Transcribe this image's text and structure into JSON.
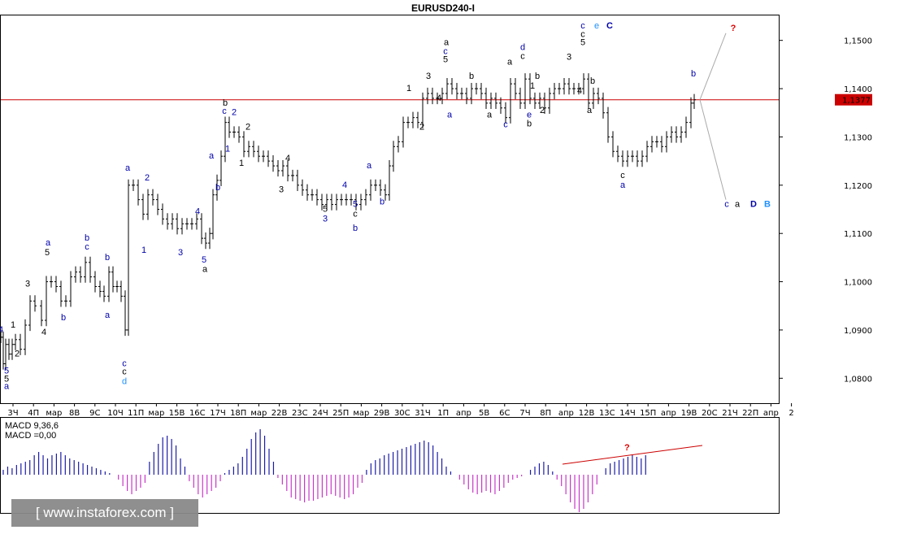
{
  "chart_data": {
    "type": "line",
    "title": "EURUSD240-I",
    "current_price": "1,1377",
    "price_level": 1.1377,
    "ylim": [
      1.075,
      1.155
    ],
    "y_ticks": [
      "1,1500",
      "1,1400",
      "1,1300",
      "1,1200",
      "1,1100",
      "1,1000",
      "1,0900",
      "1,0800"
    ],
    "y_tick_values": [
      1.15,
      1.14,
      1.13,
      1.12,
      1.11,
      1.1,
      1.09,
      1.08
    ],
    "x_ticks": [
      "3Ч",
      "4П",
      "мар",
      "8В",
      "9С",
      "10Ч",
      "11П",
      "мар",
      "15В",
      "16С",
      "17Ч",
      "18П",
      "мар",
      "22В",
      "23С",
      "24Ч",
      "25П",
      "мар",
      "29В",
      "30С",
      "31Ч",
      "1П",
      "апр",
      "5В",
      "6С",
      "7Ч",
      "8П",
      "апр",
      "12В",
      "13С",
      "14Ч",
      "15П",
      "апр",
      "19В",
      "20С",
      "21Ч",
      "22П",
      "апр",
      "2"
    ],
    "price_path": [
      [
        0,
        1.0885
      ],
      [
        3,
        1.083
      ],
      [
        6,
        1.087
      ],
      [
        10,
        1.085
      ],
      [
        14,
        1.087
      ],
      [
        18,
        1.088
      ],
      [
        24,
        1.086
      ],
      [
        30,
        1.091
      ],
      [
        36,
        1.096
      ],
      [
        42,
        1.095
      ],
      [
        50,
        1.092
      ],
      [
        56,
        1.1
      ],
      [
        62,
        1.1
      ],
      [
        68,
        1.099
      ],
      [
        74,
        1.096
      ],
      [
        80,
        1.096
      ],
      [
        86,
        1.101
      ],
      [
        92,
        1.102
      ],
      [
        98,
        1.101
      ],
      [
        104,
        1.104
      ],
      [
        110,
        1.101
      ],
      [
        116,
        1.099
      ],
      [
        122,
        1.098
      ],
      [
        127,
        1.097
      ],
      [
        133,
        1.102
      ],
      [
        138,
        1.099
      ],
      [
        143,
        1.099
      ],
      [
        148,
        1.097
      ],
      [
        153,
        1.09
      ],
      [
        157,
        1.12
      ],
      [
        163,
        1.12
      ],
      [
        169,
        1.117
      ],
      [
        175,
        1.114
      ],
      [
        181,
        1.118
      ],
      [
        187,
        1.117
      ],
      [
        193,
        1.115
      ],
      [
        199,
        1.113
      ],
      [
        205,
        1.112
      ],
      [
        211,
        1.113
      ],
      [
        217,
        1.111
      ],
      [
        223,
        1.112
      ],
      [
        229,
        1.112
      ],
      [
        235,
        1.112
      ],
      [
        241,
        1.113
      ],
      [
        247,
        1.109
      ],
      [
        252,
        1.108
      ],
      [
        257,
        1.11
      ],
      [
        261,
        1.118
      ],
      [
        266,
        1.121
      ],
      [
        271,
        1.126
      ],
      [
        276,
        1.133
      ],
      [
        281,
        1.131
      ],
      [
        287,
        1.131
      ],
      [
        293,
        1.13
      ],
      [
        299,
        1.127
      ],
      [
        305,
        1.128
      ],
      [
        311,
        1.127
      ],
      [
        317,
        1.126
      ],
      [
        323,
        1.126
      ],
      [
        329,
        1.125
      ],
      [
        335,
        1.124
      ],
      [
        341,
        1.123
      ],
      [
        347,
        1.124
      ],
      [
        353,
        1.122
      ],
      [
        359,
        1.122
      ],
      [
        365,
        1.12
      ],
      [
        371,
        1.119
      ],
      [
        377,
        1.118
      ],
      [
        383,
        1.118
      ],
      [
        389,
        1.117
      ],
      [
        395,
        1.116
      ],
      [
        401,
        1.117
      ],
      [
        407,
        1.116
      ],
      [
        413,
        1.117
      ],
      [
        419,
        1.117
      ],
      [
        425,
        1.117
      ],
      [
        431,
        1.117
      ],
      [
        437,
        1.116
      ],
      [
        443,
        1.117
      ],
      [
        449,
        1.118
      ],
      [
        455,
        1.12
      ],
      [
        461,
        1.12
      ],
      [
        467,
        1.119
      ],
      [
        473,
        1.118
      ],
      [
        478,
        1.124
      ],
      [
        483,
        1.128
      ],
      [
        489,
        1.129
      ],
      [
        495,
        1.133
      ],
      [
        501,
        1.133
      ],
      [
        507,
        1.134
      ],
      [
        513,
        1.133
      ],
      [
        519,
        1.138
      ],
      [
        525,
        1.139
      ],
      [
        531,
        1.138
      ],
      [
        537,
        1.138
      ],
      [
        543,
        1.139
      ],
      [
        549,
        1.141
      ],
      [
        555,
        1.14
      ],
      [
        561,
        1.139
      ],
      [
        567,
        1.139
      ],
      [
        573,
        1.138
      ],
      [
        579,
        1.14
      ],
      [
        585,
        1.14
      ],
      [
        591,
        1.139
      ],
      [
        597,
        1.137
      ],
      [
        603,
        1.138
      ],
      [
        609,
        1.137
      ],
      [
        615,
        1.136
      ],
      [
        621,
        1.134
      ],
      [
        627,
        1.141
      ],
      [
        633,
        1.139
      ],
      [
        639,
        1.137
      ],
      [
        645,
        1.142
      ],
      [
        651,
        1.138
      ],
      [
        657,
        1.137
      ],
      [
        663,
        1.138
      ],
      [
        669,
        1.136
      ],
      [
        675,
        1.139
      ],
      [
        681,
        1.14
      ],
      [
        687,
        1.14
      ],
      [
        693,
        1.141
      ],
      [
        699,
        1.14
      ],
      [
        705,
        1.14
      ],
      [
        711,
        1.14
      ],
      [
        717,
        1.142
      ],
      [
        723,
        1.137
      ],
      [
        729,
        1.139
      ],
      [
        735,
        1.138
      ],
      [
        741,
        1.135
      ],
      [
        747,
        1.13
      ],
      [
        753,
        1.127
      ],
      [
        759,
        1.126
      ],
      [
        765,
        1.125
      ],
      [
        771,
        1.126
      ],
      [
        777,
        1.126
      ],
      [
        783,
        1.125
      ],
      [
        789,
        1.126
      ],
      [
        795,
        1.128
      ],
      [
        801,
        1.129
      ],
      [
        807,
        1.129
      ],
      [
        813,
        1.128
      ],
      [
        819,
        1.13
      ],
      [
        825,
        1.131
      ],
      [
        831,
        1.13
      ],
      [
        837,
        1.131
      ],
      [
        843,
        1.133
      ],
      [
        849,
        1.137
      ],
      [
        853,
        1.1377
      ]
    ],
    "wave_labels": [
      {
        "text": "4",
        "x": 1,
        "y": 1.0895,
        "color": "#0000aa"
      },
      {
        "text": "1",
        "x": 16,
        "y": 1.0905,
        "color": "#000000"
      },
      {
        "text": "2",
        "x": 21,
        "y": 1.0845,
        "color": "#000000"
      },
      {
        "text": "5",
        "x": 8,
        "y": 1.081,
        "color": "#0000aa"
      },
      {
        "text": "5",
        "x": 8,
        "y": 1.0793,
        "color": "#000000"
      },
      {
        "text": "a",
        "x": 8,
        "y": 1.0778,
        "color": "#0000aa"
      },
      {
        "text": "3",
        "x": 34,
        "y": 1.099,
        "color": "#000000"
      },
      {
        "text": "4",
        "x": 54,
        "y": 1.089,
        "color": "#000000"
      },
      {
        "text": "a",
        "x": 59,
        "y": 1.1075,
        "color": "#0000aa"
      },
      {
        "text": "5",
        "x": 58,
        "y": 1.1055,
        "color": "#000000"
      },
      {
        "text": "b",
        "x": 78,
        "y": 1.092,
        "color": "#0000aa"
      },
      {
        "text": "b",
        "x": 107,
        "y": 1.1085,
        "color": "#0000aa"
      },
      {
        "text": "c",
        "x": 107,
        "y": 1.1067,
        "color": "#0000aa"
      },
      {
        "text": "b",
        "x": 132,
        "y": 1.1045,
        "color": "#0000aa"
      },
      {
        "text": "a",
        "x": 132,
        "y": 1.0925,
        "color": "#0000aa"
      },
      {
        "text": "c",
        "x": 153,
        "y": 1.0825,
        "color": "#0000aa"
      },
      {
        "text": "c",
        "x": 153,
        "y": 1.0808,
        "color": "#000000"
      },
      {
        "text": "d",
        "x": 153,
        "y": 1.0788,
        "color": "#1e90ff"
      },
      {
        "text": "a",
        "x": 157,
        "y": 1.123,
        "color": "#0000aa"
      },
      {
        "text": "2",
        "x": 181,
        "y": 1.121,
        "color": "#0000aa"
      },
      {
        "text": "1",
        "x": 177,
        "y": 1.106,
        "color": "#0000aa"
      },
      {
        "text": "3",
        "x": 222,
        "y": 1.1055,
        "color": "#0000aa"
      },
      {
        "text": "4",
        "x": 243,
        "y": 1.114,
        "color": "#0000aa"
      },
      {
        "text": "5",
        "x": 251,
        "y": 1.104,
        "color": "#0000aa"
      },
      {
        "text": "a",
        "x": 252,
        "y": 1.102,
        "color": "#000000"
      },
      {
        "text": "a",
        "x": 260,
        "y": 1.1255,
        "color": "#0000aa"
      },
      {
        "text": "b",
        "x": 268,
        "y": 1.119,
        "color": "#0000aa"
      },
      {
        "text": "b",
        "x": 277,
        "y": 1.1365,
        "color": "#000000"
      },
      {
        "text": "c",
        "x": 276,
        "y": 1.1348,
        "color": "#0000aa"
      },
      {
        "text": "2",
        "x": 288,
        "y": 1.1345,
        "color": "#0000aa"
      },
      {
        "text": "1",
        "x": 280,
        "y": 1.127,
        "color": "#0000aa"
      },
      {
        "text": "2",
        "x": 305,
        "y": 1.1315,
        "color": "#000000"
      },
      {
        "text": "1",
        "x": 297,
        "y": 1.124,
        "color": "#000000"
      },
      {
        "text": "4",
        "x": 354,
        "y": 1.125,
        "color": "#000000"
      },
      {
        "text": "3",
        "x": 346,
        "y": 1.1185,
        "color": "#000000"
      },
      {
        "text": "4",
        "x": 424,
        "y": 1.1195,
        "color": "#0000aa"
      },
      {
        "text": "5",
        "x": 400,
        "y": 1.1145,
        "color": "#000000"
      },
      {
        "text": "3",
        "x": 400,
        "y": 1.1125,
        "color": "#0000aa"
      },
      {
        "text": "5",
        "x": 437,
        "y": 1.1155,
        "color": "#0000aa"
      },
      {
        "text": "c",
        "x": 437,
        "y": 1.1135,
        "color": "#000000"
      },
      {
        "text": "b",
        "x": 437,
        "y": 1.1105,
        "color": "#0000aa"
      },
      {
        "text": "a",
        "x": 454,
        "y": 1.1235,
        "color": "#0000aa"
      },
      {
        "text": "b",
        "x": 470,
        "y": 1.116,
        "color": "#0000aa"
      },
      {
        "text": "1",
        "x": 503,
        "y": 1.1395,
        "color": "#000000"
      },
      {
        "text": "2",
        "x": 519,
        "y": 1.1315,
        "color": "#000000"
      },
      {
        "text": "3",
        "x": 527,
        "y": 1.142,
        "color": "#000000"
      },
      {
        "text": "4",
        "x": 540,
        "y": 1.1375,
        "color": "#000000"
      },
      {
        "text": "a",
        "x": 549,
        "y": 1.149,
        "color": "#000000"
      },
      {
        "text": "c",
        "x": 548,
        "y": 1.1472,
        "color": "#0000aa"
      },
      {
        "text": "5",
        "x": 548,
        "y": 1.1455,
        "color": "#000000"
      },
      {
        "text": "b",
        "x": 580,
        "y": 1.142,
        "color": "#000000"
      },
      {
        "text": "a",
        "x": 553,
        "y": 1.134,
        "color": "#0000aa"
      },
      {
        "text": "a",
        "x": 602,
        "y": 1.134,
        "color": "#000000"
      },
      {
        "text": "c",
        "x": 622,
        "y": 1.132,
        "color": "#0000aa"
      },
      {
        "text": "a",
        "x": 627,
        "y": 1.145,
        "color": "#000000"
      },
      {
        "text": "d",
        "x": 643,
        "y": 1.148,
        "color": "#0000aa"
      },
      {
        "text": "c",
        "x": 643,
        "y": 1.1462,
        "color": "#000000"
      },
      {
        "text": "b",
        "x": 661,
        "y": 1.142,
        "color": "#000000"
      },
      {
        "text": "e",
        "x": 651,
        "y": 1.134,
        "color": "#0000aa"
      },
      {
        "text": "b",
        "x": 651,
        "y": 1.1322,
        "color": "#000000"
      },
      {
        "text": "1",
        "x": 655,
        "y": 1.14,
        "color": "#000000"
      },
      {
        "text": "2",
        "x": 667,
        "y": 1.135,
        "color": "#000000"
      },
      {
        "text": "3",
        "x": 700,
        "y": 1.146,
        "color": "#000000"
      },
      {
        "text": "4",
        "x": 713,
        "y": 1.139,
        "color": "#000000"
      },
      {
        "text": "c",
        "x": 717,
        "y": 1.1525,
        "color": "#0000aa"
      },
      {
        "text": "c",
        "x": 717,
        "y": 1.1507,
        "color": "#000000"
      },
      {
        "text": "5",
        "x": 717,
        "y": 1.149,
        "color": "#000000"
      },
      {
        "text": "e",
        "x": 734,
        "y": 1.1525,
        "color": "#1e90ff"
      },
      {
        "text": "C",
        "x": 750,
        "y": 1.1525,
        "color": "#0000aa"
      },
      {
        "text": "b",
        "x": 729,
        "y": 1.141,
        "color": "#000000"
      },
      {
        "text": "a",
        "x": 725,
        "y": 1.135,
        "color": "#000000"
      },
      {
        "text": "c",
        "x": 766,
        "y": 1.1215,
        "color": "#000000"
      },
      {
        "text": "a",
        "x": 766,
        "y": 1.1195,
        "color": "#0000aa"
      },
      {
        "text": "b",
        "x": 853,
        "y": 1.1425,
        "color": "#0000aa"
      },
      {
        "text": "?",
        "x": 902,
        "y": 1.152,
        "color": "#dd0000"
      },
      {
        "text": "c",
        "x": 894,
        "y": 1.1155,
        "color": "#0000aa"
      },
      {
        "text": "a",
        "x": 907,
        "y": 1.1155,
        "color": "#000000"
      },
      {
        "text": "D",
        "x": 927,
        "y": 1.1155,
        "color": "#0000aa"
      },
      {
        "text": "B",
        "x": 944,
        "y": 1.1155,
        "color": "#1e90ff"
      }
    ],
    "macd": {
      "label_main": "MACD 9,36,6",
      "label_value": "MACD =0,00",
      "question_mark": "?",
      "values": [
        3,
        5,
        4,
        6,
        7,
        8,
        9,
        12,
        14,
        12,
        10,
        12,
        13,
        14,
        12,
        10,
        9,
        8,
        7,
        6,
        5,
        4,
        3,
        2,
        1,
        0,
        -3,
        -7,
        -10,
        -12,
        -10,
        -8,
        -5,
        8,
        14,
        19,
        23,
        24,
        22,
        18,
        10,
        5,
        -4,
        -8,
        -12,
        -14,
        -12,
        -10,
        -8,
        -4,
        1,
        3,
        5,
        7,
        11,
        16,
        22,
        26,
        28,
        24,
        16,
        8,
        -2,
        -6,
        -10,
        -14,
        -15,
        -16,
        -17,
        -16,
        -16,
        -15,
        -14,
        -13,
        -12,
        -13,
        -14,
        -15,
        -14,
        -12,
        -8,
        -5,
        3,
        7,
        9,
        10,
        12,
        13,
        14,
        15,
        16,
        17,
        18,
        19,
        20,
        21,
        20,
        18,
        14,
        10,
        5,
        2,
        0,
        -3,
        -6,
        -9,
        -11,
        -12,
        -11,
        -10,
        -11,
        -12,
        -10,
        -8,
        -5,
        -3,
        -2,
        -1,
        0,
        3,
        5,
        7,
        8,
        6,
        2,
        -3,
        -7,
        -12,
        -17,
        -21,
        -23,
        -21,
        -17,
        -12,
        -6,
        0,
        4,
        7,
        8,
        9,
        10,
        11,
        12,
        11,
        10,
        12
      ]
    }
  }
}
